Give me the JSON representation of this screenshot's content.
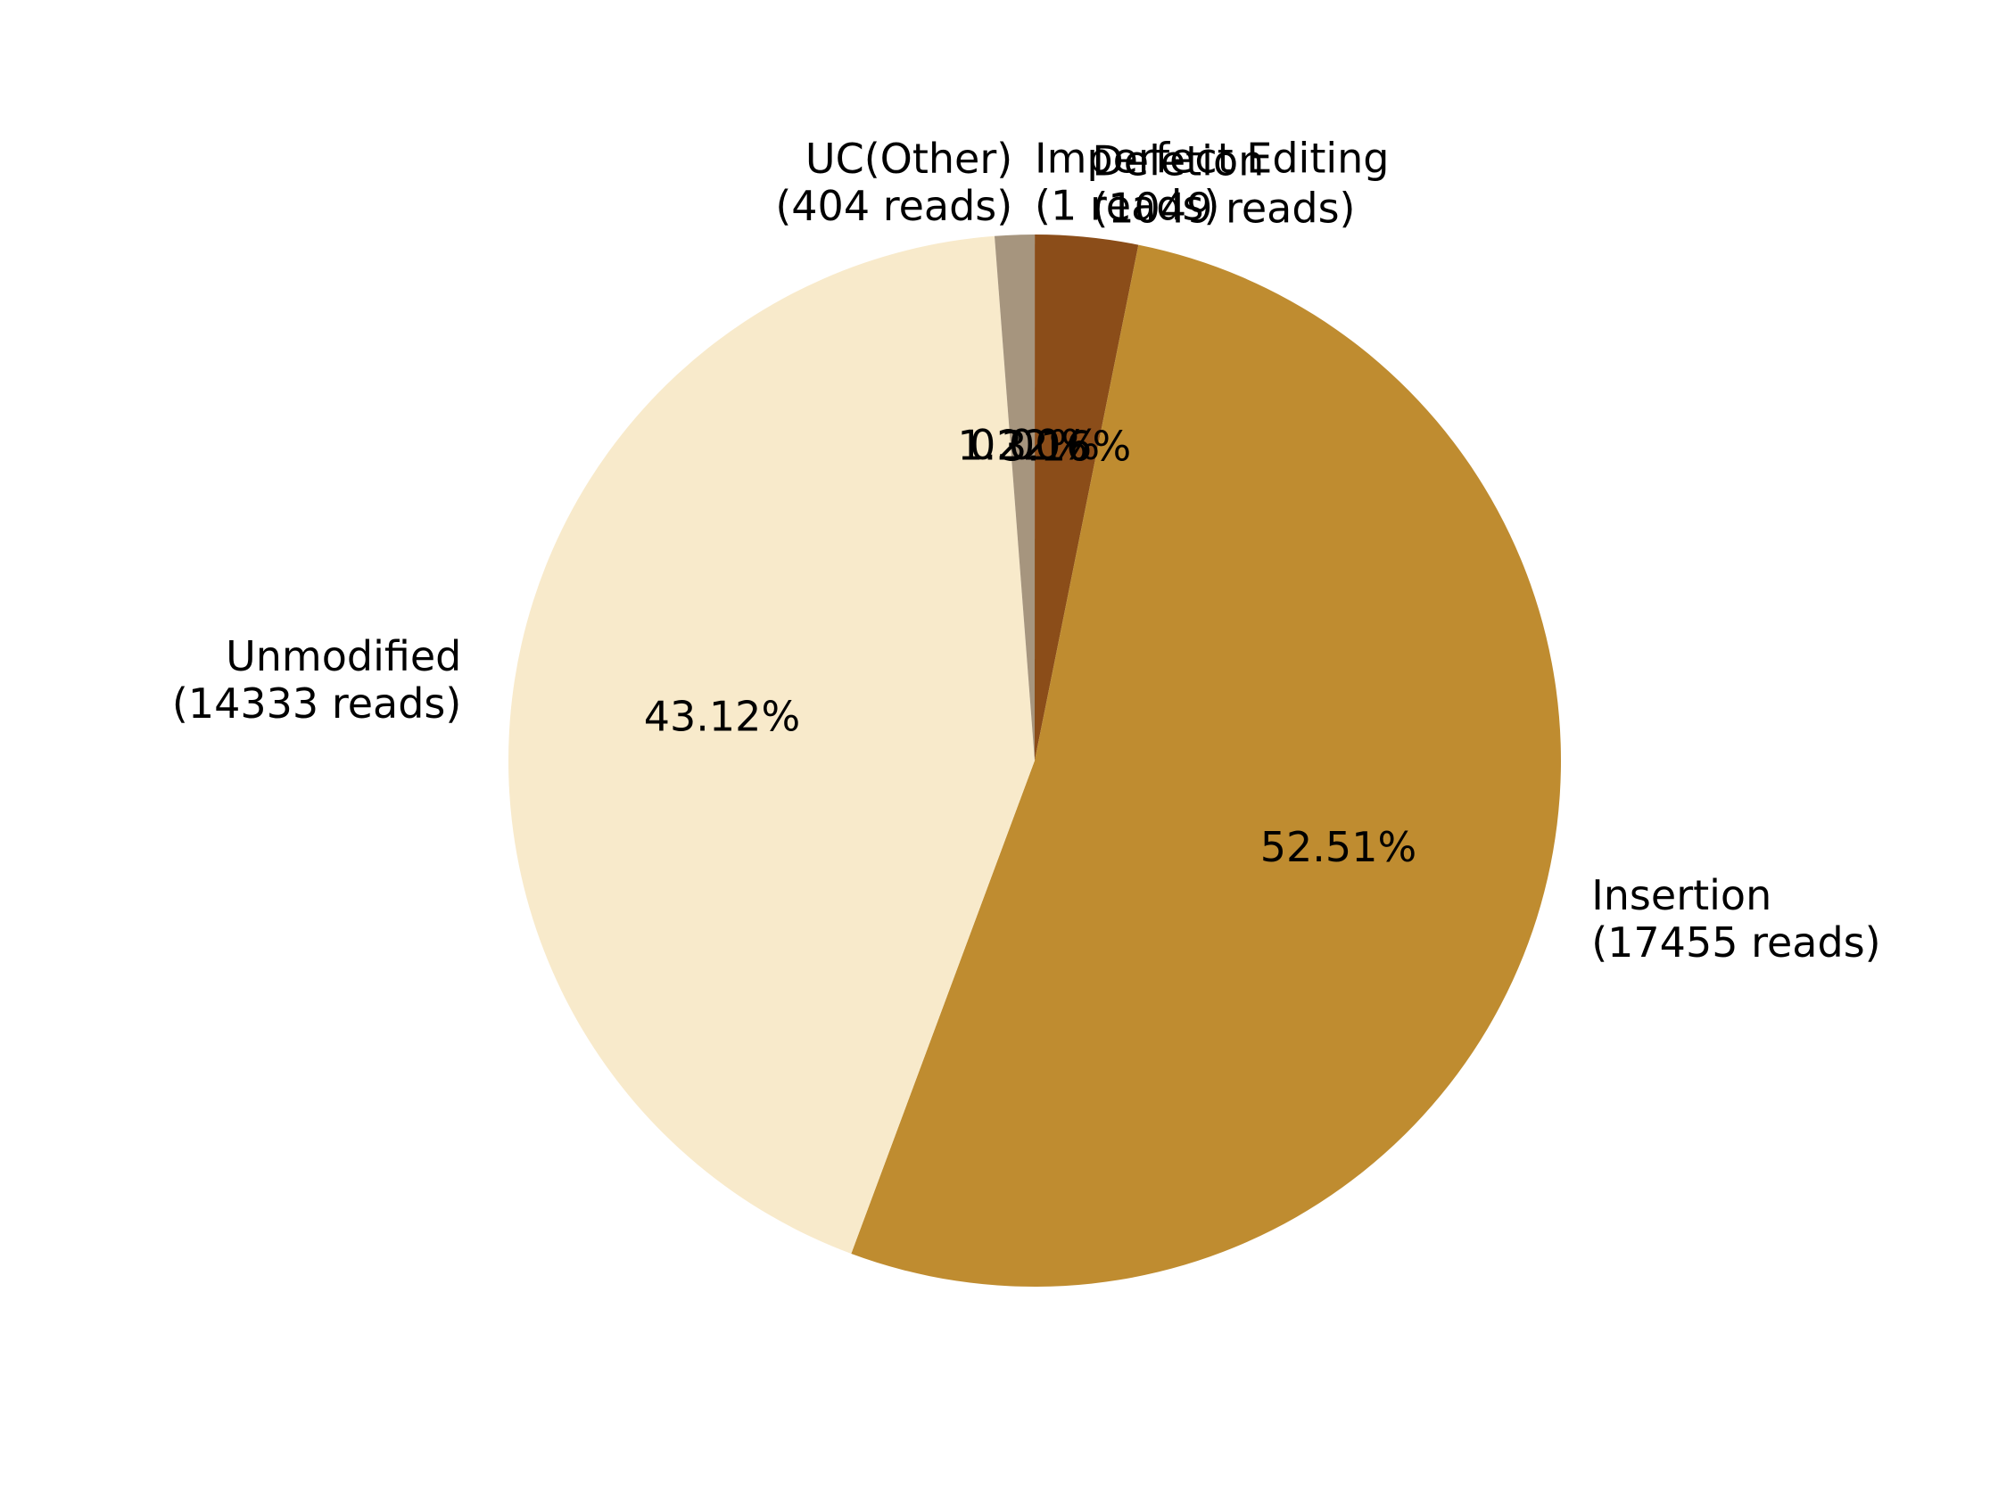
{
  "chart_data": {
    "type": "pie",
    "title": "",
    "start_angle_deg": 90,
    "direction": "clockwise",
    "slices": [
      {
        "name": "Imperfect Editing",
        "reads_label": "(1 reads)",
        "value": 1,
        "percent_label": "0.00%",
        "color": "#8c7355"
      },
      {
        "name": "Deletion",
        "reads_label": "(1049 reads)",
        "value": 1049,
        "percent_label": "3.16%",
        "color": "#8b4d19"
      },
      {
        "name": "Insertion",
        "reads_label": "(17455 reads)",
        "value": 17455,
        "percent_label": "52.51%",
        "color": "#bf8c30"
      },
      {
        "name": "Unmodified",
        "reads_label": "(14333 reads)",
        "value": 14333,
        "percent_label": "43.12%",
        "color": "#f8eacb"
      },
      {
        "name": "UC(Other)",
        "reads_label": "(404 reads)",
        "value": 404,
        "percent_label": "1.22%",
        "color": "#a6957e"
      }
    ]
  }
}
